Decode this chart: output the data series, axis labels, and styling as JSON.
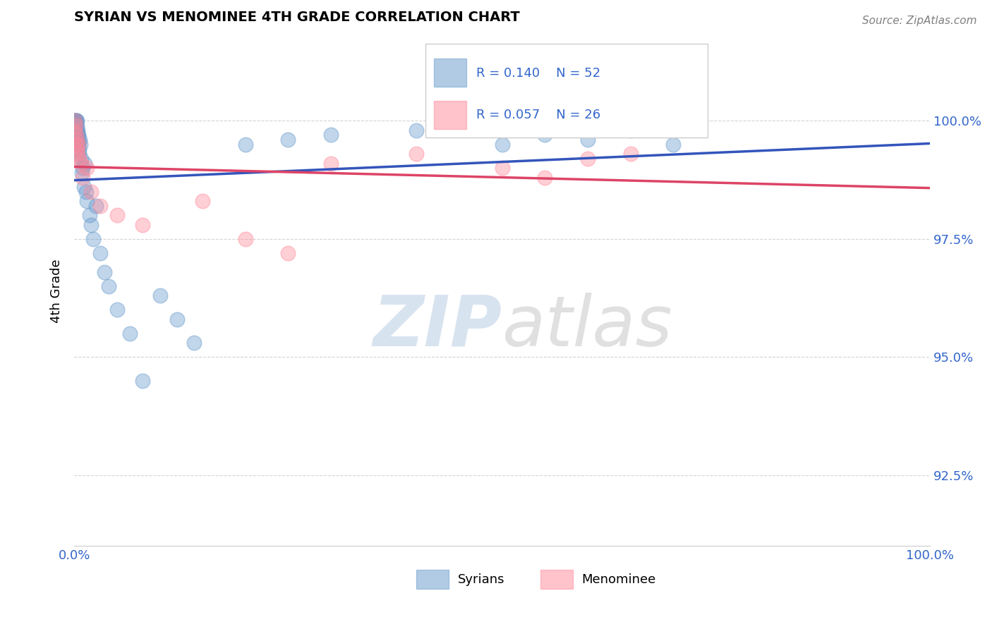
{
  "title": "SYRIAN VS MENOMINEE 4TH GRADE CORRELATION CHART",
  "source": "Source: ZipAtlas.com",
  "ylabel": "4th Grade",
  "xlim": [
    0.0,
    100.0
  ],
  "ylim": [
    91.0,
    101.8
  ],
  "yticks": [
    92.5,
    95.0,
    97.5,
    100.0
  ],
  "ytick_labels": [
    "92.5%",
    "95.0%",
    "97.5%",
    "100.0%"
  ],
  "xticks": [
    0.0,
    100.0
  ],
  "xtick_labels": [
    "0.0%",
    "100.0%"
  ],
  "legend_r_blue": "R = 0.140",
  "legend_n_blue": "N = 52",
  "legend_r_pink": "R = 0.057",
  "legend_n_pink": "N = 26",
  "blue_color": "#6699CC",
  "pink_color": "#FF8899",
  "trend_blue": "#3355BB",
  "trend_pink": "#DD4466",
  "watermark_zip": "ZIP",
  "watermark_atlas": "atlas",
  "syrian_x": [
    0.05,
    0.08,
    0.1,
    0.12,
    0.15,
    0.18,
    0.2,
    0.22,
    0.25,
    0.28,
    0.3,
    0.32,
    0.35,
    0.38,
    0.4,
    0.42,
    0.45,
    0.48,
    0.5,
    0.55,
    0.6,
    0.65,
    0.7,
    0.8,
    0.9,
    1.0,
    1.1,
    1.2,
    1.4,
    1.5,
    1.8,
    2.0,
    2.2,
    2.5,
    3.0,
    3.5,
    4.0,
    5.0,
    6.5,
    8.0,
    10.0,
    12.0,
    14.0,
    20.0,
    25.0,
    30.0,
    40.0,
    50.0,
    55.0,
    60.0,
    65.0,
    70.0
  ],
  "syrian_y": [
    100.0,
    100.0,
    100.0,
    100.0,
    100.0,
    100.0,
    99.9,
    100.0,
    99.8,
    100.0,
    99.7,
    99.9,
    99.8,
    99.6,
    99.7,
    99.8,
    99.5,
    99.6,
    99.7,
    99.4,
    99.3,
    99.6,
    99.5,
    99.2,
    98.9,
    99.0,
    98.6,
    99.1,
    98.5,
    98.3,
    98.0,
    97.8,
    97.5,
    98.2,
    97.2,
    96.8,
    96.5,
    96.0,
    95.5,
    94.5,
    96.3,
    95.8,
    95.3,
    99.5,
    99.6,
    99.7,
    99.8,
    99.5,
    99.7,
    99.6,
    99.8,
    99.5
  ],
  "menominee_x": [
    0.05,
    0.1,
    0.15,
    0.2,
    0.25,
    0.3,
    0.35,
    0.4,
    0.5,
    0.6,
    0.8,
    1.0,
    1.5,
    2.0,
    3.0,
    5.0,
    8.0,
    15.0,
    20.0,
    25.0,
    30.0,
    40.0,
    50.0,
    55.0,
    60.0,
    65.0
  ],
  "menominee_y": [
    100.0,
    99.8,
    99.9,
    99.5,
    99.7,
    99.6,
    99.4,
    99.3,
    99.5,
    99.2,
    99.1,
    98.8,
    99.0,
    98.5,
    98.2,
    98.0,
    97.8,
    98.3,
    97.5,
    97.2,
    99.1,
    99.3,
    99.0,
    98.8,
    99.2,
    99.3
  ]
}
